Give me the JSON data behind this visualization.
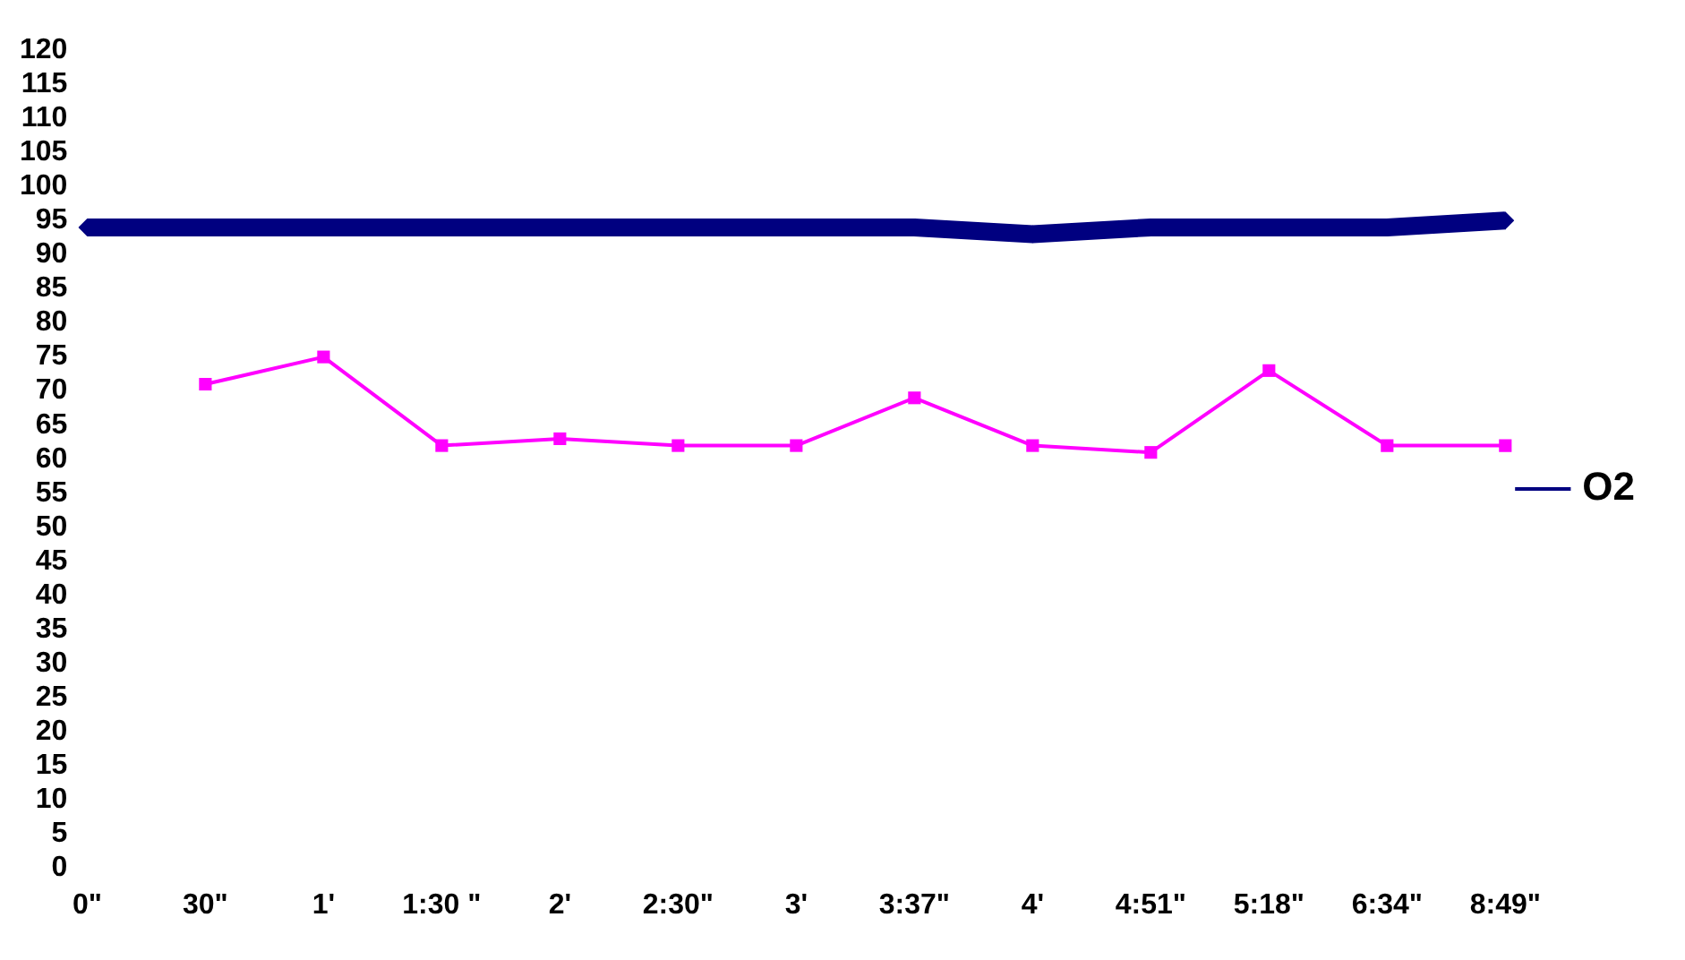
{
  "chart_data": {
    "type": "line",
    "categories": [
      "0\"",
      "30\"",
      "1'",
      "1:30 \"",
      "2'",
      "2:30\"",
      "3'",
      "3:37\"",
      "4'",
      "4:51\"",
      "5:18\"",
      "6:34\"",
      "8:49\""
    ],
    "series": [
      {
        "name": "O2",
        "color": "#000080",
        "marker": "diamond",
        "values": [
          94,
          94,
          94,
          94,
          94,
          94,
          94,
          94,
          93,
          94,
          94,
          94,
          95
        ]
      },
      {
        "color": "#ff00ff",
        "marker": "square",
        "values": [
          null,
          71,
          75,
          62,
          63,
          62,
          62,
          69,
          62,
          61,
          73,
          62,
          62
        ]
      }
    ],
    "ylim": [
      0,
      120
    ],
    "yticks": [
      0,
      5,
      10,
      15,
      20,
      25,
      30,
      35,
      40,
      45,
      50,
      55,
      60,
      65,
      70,
      75,
      80,
      85,
      90,
      95,
      100,
      105,
      110,
      115,
      120
    ],
    "grid": false,
    "legend": "right"
  }
}
